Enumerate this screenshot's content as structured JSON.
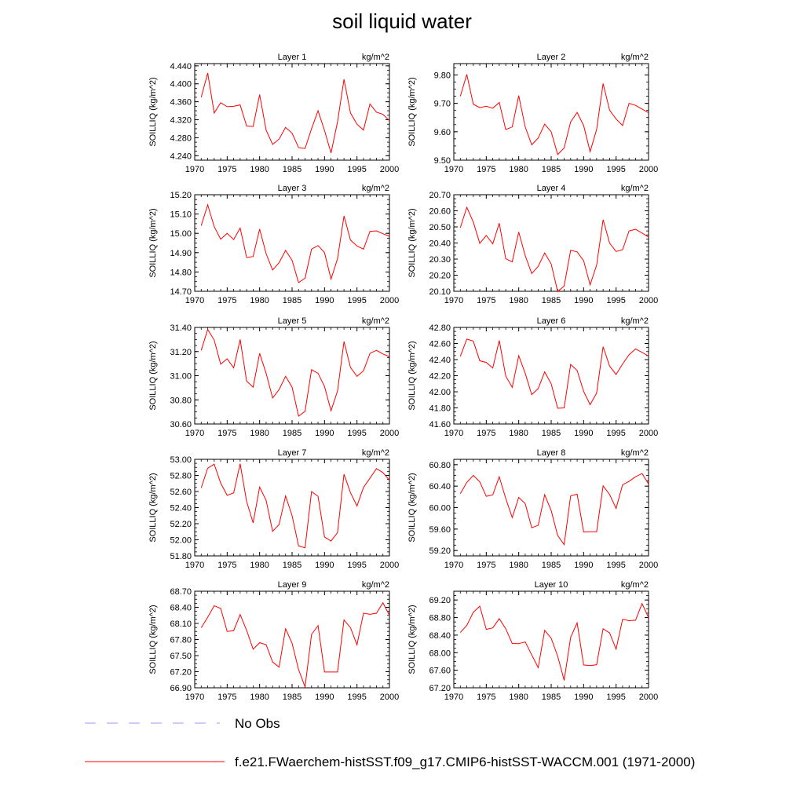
{
  "title": "soil liquid water",
  "legend": {
    "obs_label": "No Obs",
    "obs_color": "#9999ff",
    "model_label": "f.e21.FWaerchem-histSST.f09_g17.CMIP6-histSST-WACCM.001 (1971-2000)",
    "model_color": "#ff0000"
  },
  "chart_data": [
    {
      "type": "line",
      "title": "Layer 1",
      "units": "kg/m^2",
      "ylabel": "SOILLIQ  (kg/m^2)",
      "ylim": [
        4.23,
        4.445
      ],
      "yticks": [
        "4.240",
        "4.280",
        "4.320",
        "4.360",
        "4.400",
        "4.440"
      ],
      "xticks": [
        "1970",
        "1975",
        "1980",
        "1985",
        "1990",
        "1995",
        "2000"
      ],
      "xlim": [
        1970,
        2000
      ],
      "x": [
        1971,
        1972,
        1973,
        1974,
        1975,
        1976,
        1977,
        1978,
        1979,
        1980,
        1981,
        1982,
        1983,
        1984,
        1985,
        1986,
        1987,
        1988,
        1989,
        1990,
        1991,
        1992,
        1993,
        1994,
        1995,
        1996,
        1997,
        1998,
        1999,
        2000
      ],
      "series": [
        {
          "values": [
            4.37,
            4.424,
            4.335,
            4.358,
            4.349,
            4.35,
            4.353,
            4.306,
            4.305,
            4.376,
            4.297,
            4.265,
            4.277,
            4.303,
            4.29,
            4.258,
            4.256,
            4.3,
            4.34,
            4.296,
            4.246,
            4.315,
            4.41,
            4.335,
            4.31,
            4.297,
            4.355,
            4.337,
            4.332,
            4.318
          ]
        }
      ]
    },
    {
      "type": "line",
      "title": "Layer 2",
      "units": "kg/m^2",
      "ylabel": "SOILLIQ  (kg/m^2)",
      "ylim": [
        9.5,
        9.84
      ],
      "yticks": [
        "9.50",
        "9.60",
        "9.70",
        "9.80"
      ],
      "xticks": [
        "1970",
        "1975",
        "1980",
        "1985",
        "1990",
        "1995",
        "2000"
      ],
      "xlim": [
        1970,
        2000
      ],
      "x": [
        1971,
        1972,
        1973,
        1974,
        1975,
        1976,
        1977,
        1978,
        1979,
        1980,
        1981,
        1982,
        1983,
        1984,
        1985,
        1986,
        1987,
        1988,
        1989,
        1990,
        1991,
        1992,
        1993,
        1994,
        1995,
        1996,
        1997,
        1998,
        1999,
        2000
      ],
      "series": [
        {
          "values": [
            9.725,
            9.802,
            9.697,
            9.685,
            9.69,
            9.683,
            9.703,
            9.608,
            9.617,
            9.727,
            9.617,
            9.554,
            9.578,
            9.627,
            9.6,
            9.52,
            9.543,
            9.635,
            9.668,
            9.622,
            9.53,
            9.608,
            9.77,
            9.676,
            9.645,
            9.622,
            9.7,
            9.693,
            9.68,
            9.667
          ]
        }
      ]
    },
    {
      "type": "line",
      "title": "Layer 3",
      "units": "kg/m^2",
      "ylabel": "SOILLIQ  (kg/m^2)",
      "ylim": [
        14.7,
        15.2
      ],
      "yticks": [
        "14.70",
        "14.80",
        "14.90",
        "15.00",
        "15.10",
        "15.20"
      ],
      "xticks": [
        "1970",
        "1975",
        "1980",
        "1985",
        "1990",
        "1995",
        "2000"
      ],
      "xlim": [
        1970,
        2000
      ],
      "x": [
        1971,
        1972,
        1973,
        1974,
        1975,
        1976,
        1977,
        1978,
        1979,
        1980,
        1981,
        1982,
        1983,
        1984,
        1985,
        1986,
        1987,
        1988,
        1989,
        1990,
        1991,
        1992,
        1993,
        1994,
        1995,
        1996,
        1997,
        1998,
        1999,
        2000
      ],
      "series": [
        {
          "values": [
            15.04,
            15.148,
            15.035,
            14.97,
            15.0,
            14.968,
            15.027,
            14.875,
            14.88,
            15.022,
            14.895,
            14.81,
            14.848,
            14.912,
            14.86,
            14.745,
            14.768,
            14.918,
            14.937,
            14.9,
            14.763,
            14.868,
            15.09,
            14.965,
            14.935,
            14.918,
            15.01,
            15.013,
            14.998,
            14.985
          ]
        }
      ]
    },
    {
      "type": "line",
      "title": "Layer 4",
      "units": "kg/m^2",
      "ylabel": "SOILLIQ  (kg/m^2)",
      "ylim": [
        20.1,
        20.7
      ],
      "yticks": [
        "20.10",
        "20.20",
        "20.30",
        "20.40",
        "20.50",
        "20.60",
        "20.70"
      ],
      "xticks": [
        "1970",
        "1975",
        "1980",
        "1985",
        "1990",
        "1995",
        "2000"
      ],
      "xlim": [
        1970,
        2000
      ],
      "x": [
        1971,
        1972,
        1973,
        1974,
        1975,
        1976,
        1977,
        1978,
        1979,
        1980,
        1981,
        1982,
        1983,
        1984,
        1985,
        1986,
        1987,
        1988,
        1989,
        1990,
        1991,
        1992,
        1993,
        1994,
        1995,
        1996,
        1997,
        1998,
        1999,
        2000
      ],
      "series": [
        {
          "values": [
            20.495,
            20.622,
            20.53,
            20.398,
            20.447,
            20.395,
            20.523,
            20.302,
            20.283,
            20.468,
            20.322,
            20.21,
            20.255,
            20.338,
            20.27,
            20.098,
            20.133,
            20.355,
            20.345,
            20.29,
            20.14,
            20.262,
            20.545,
            20.4,
            20.347,
            20.358,
            20.475,
            20.485,
            20.462,
            20.437
          ]
        }
      ]
    },
    {
      "type": "line",
      "title": "Layer 5",
      "units": "kg/m^2",
      "ylabel": "SOILLIQ  (kg/m^2)",
      "ylim": [
        30.6,
        31.4
      ],
      "yticks": [
        "30.60",
        "30.80",
        "31.00",
        "31.20",
        "31.40"
      ],
      "xticks": [
        "1970",
        "1975",
        "1980",
        "1985",
        "1990",
        "1995",
        "2000"
      ],
      "xlim": [
        1970,
        2000
      ],
      "x": [
        1971,
        1972,
        1973,
        1974,
        1975,
        1976,
        1977,
        1978,
        1979,
        1980,
        1981,
        1982,
        1983,
        1984,
        1985,
        1986,
        1987,
        1988,
        1989,
        1990,
        1991,
        1992,
        1993,
        1994,
        1995,
        1996,
        1997,
        1998,
        1999,
        2000
      ],
      "series": [
        {
          "values": [
            31.21,
            31.383,
            31.295,
            31.095,
            31.14,
            31.065,
            31.3,
            30.955,
            30.905,
            31.185,
            31.02,
            30.815,
            30.885,
            30.995,
            30.905,
            30.665,
            30.705,
            31.05,
            31.02,
            30.91,
            30.71,
            30.873,
            31.283,
            31.068,
            30.995,
            31.04,
            31.185,
            31.21,
            31.18,
            31.157
          ]
        }
      ]
    },
    {
      "type": "line",
      "title": "Layer 6",
      "units": "kg/m^2",
      "ylabel": "SOILLIQ  (kg/m^2)",
      "ylim": [
        41.6,
        42.8
      ],
      "yticks": [
        "41.60",
        "41.80",
        "42.00",
        "42.20",
        "42.40",
        "42.60",
        "42.80"
      ],
      "xticks": [
        "1970",
        "1975",
        "1980",
        "1985",
        "1990",
        "1995",
        "2000"
      ],
      "xlim": [
        1970,
        2000
      ],
      "x": [
        1971,
        1972,
        1973,
        1974,
        1975,
        1976,
        1977,
        1978,
        1979,
        1980,
        1981,
        1982,
        1983,
        1984,
        1985,
        1986,
        1987,
        1988,
        1989,
        1990,
        1991,
        1992,
        1993,
        1994,
        1995,
        1996,
        1997,
        1998,
        1999,
        2000
      ],
      "series": [
        {
          "values": [
            42.44,
            42.655,
            42.63,
            42.385,
            42.365,
            42.295,
            42.638,
            42.195,
            42.055,
            42.448,
            42.23,
            41.965,
            42.04,
            42.248,
            42.1,
            41.795,
            41.8,
            42.34,
            42.265,
            42.005,
            41.84,
            41.985,
            42.56,
            42.32,
            42.215,
            42.345,
            42.46,
            42.533,
            42.49,
            42.445
          ]
        }
      ]
    },
    {
      "type": "line",
      "title": "Layer 7",
      "units": "kg/m^2",
      "ylabel": "SOILLIQ  (kg/m^2)",
      "ylim": [
        51.8,
        53.0
      ],
      "yticks": [
        "51.80",
        "52.00",
        "52.20",
        "52.40",
        "52.60",
        "52.80",
        "53.00"
      ],
      "xticks": [
        "1970",
        "1975",
        "1980",
        "1985",
        "1990",
        "1995",
        "2000"
      ],
      "xlim": [
        1970,
        2000
      ],
      "x": [
        1971,
        1972,
        1973,
        1974,
        1975,
        1976,
        1977,
        1978,
        1979,
        1980,
        1981,
        1982,
        1983,
        1984,
        1985,
        1986,
        1987,
        1988,
        1989,
        1990,
        1991,
        1992,
        1993,
        1994,
        1995,
        1996,
        1997,
        1998,
        1999,
        2000
      ],
      "series": [
        {
          "values": [
            52.645,
            52.89,
            52.94,
            52.705,
            52.553,
            52.583,
            52.945,
            52.475,
            52.21,
            52.655,
            52.49,
            52.105,
            52.19,
            52.545,
            52.3,
            51.925,
            51.9,
            52.6,
            52.54,
            52.035,
            51.985,
            52.09,
            52.815,
            52.585,
            52.42,
            52.65,
            52.765,
            52.885,
            52.835,
            52.74
          ]
        }
      ]
    },
    {
      "type": "line",
      "title": "Layer 8",
      "units": "kg/m^2",
      "ylabel": "SOILLIQ  (kg/m^2)",
      "ylim": [
        59.1,
        60.9
      ],
      "yticks": [
        "59.20",
        "59.60",
        "60.00",
        "60.40",
        "60.80"
      ],
      "xticks": [
        "1970",
        "1975",
        "1980",
        "1985",
        "1990",
        "1995",
        "2000"
      ],
      "xlim": [
        1970,
        2000
      ],
      "x": [
        1971,
        1972,
        1973,
        1974,
        1975,
        1976,
        1977,
        1978,
        1979,
        1980,
        1981,
        1982,
        1983,
        1984,
        1985,
        1986,
        1987,
        1988,
        1989,
        1990,
        1991,
        1992,
        1993,
        1994,
        1995,
        1996,
        1997,
        1998,
        1999,
        2000
      ],
      "series": [
        {
          "values": [
            60.26,
            60.47,
            60.6,
            60.48,
            60.21,
            60.238,
            60.575,
            60.17,
            59.815,
            60.19,
            60.075,
            59.625,
            59.67,
            60.24,
            59.945,
            59.48,
            59.31,
            60.22,
            60.25,
            59.545,
            59.55,
            59.55,
            60.405,
            60.245,
            59.985,
            60.425,
            60.49,
            60.575,
            60.635,
            60.44
          ]
        }
      ]
    },
    {
      "type": "line",
      "title": "Layer 9",
      "units": "kg/m^2",
      "ylabel": "SOILLIQ  (kg/m^2)",
      "ylim": [
        66.9,
        68.7
      ],
      "yticks": [
        "66.90",
        "67.20",
        "67.50",
        "67.80",
        "68.10",
        "68.40",
        "68.70"
      ],
      "xticks": [
        "1970",
        "1975",
        "1980",
        "1985",
        "1990",
        "1995",
        "2000"
      ],
      "xlim": [
        1970,
        2000
      ],
      "x": [
        1971,
        1972,
        1973,
        1974,
        1975,
        1976,
        1977,
        1978,
        1979,
        1980,
        1981,
        1982,
        1983,
        1984,
        1985,
        1986,
        1987,
        1988,
        1989,
        1990,
        1991,
        1992,
        1993,
        1994,
        1995,
        1996,
        1997,
        1998,
        1999,
        2000
      ],
      "series": [
        {
          "values": [
            68.02,
            68.215,
            68.43,
            68.38,
            67.95,
            67.965,
            68.265,
            67.97,
            67.62,
            67.74,
            67.705,
            67.38,
            67.285,
            68.0,
            67.73,
            67.24,
            66.915,
            67.895,
            68.06,
            67.195,
            67.195,
            67.195,
            68.165,
            68.02,
            67.7,
            68.29,
            68.27,
            68.29,
            68.485,
            68.25
          ]
        }
      ]
    },
    {
      "type": "line",
      "title": "Layer 10",
      "units": "kg/m^2",
      "ylabel": "SOILLIQ  (kg/m^2)",
      "ylim": [
        67.2,
        69.4
      ],
      "yticks": [
        "67.20",
        "67.60",
        "68.00",
        "68.40",
        "68.80",
        "69.20"
      ],
      "xticks": [
        "1970",
        "1975",
        "1980",
        "1985",
        "1990",
        "1995",
        "2000"
      ],
      "xlim": [
        1970,
        2000
      ],
      "x": [
        1971,
        1972,
        1973,
        1974,
        1975,
        1976,
        1977,
        1978,
        1979,
        1980,
        1981,
        1982,
        1983,
        1984,
        1985,
        1986,
        1987,
        1988,
        1989,
        1990,
        1991,
        1992,
        1993,
        1994,
        1995,
        1996,
        1997,
        1998,
        1999,
        2000
      ],
      "series": [
        {
          "values": [
            68.46,
            68.62,
            68.92,
            69.06,
            68.53,
            68.565,
            68.775,
            68.545,
            68.21,
            68.205,
            68.245,
            67.95,
            67.66,
            68.51,
            68.33,
            67.92,
            67.37,
            68.35,
            68.68,
            67.72,
            67.705,
            67.725,
            68.545,
            68.45,
            68.08,
            68.76,
            68.73,
            68.74,
            69.12,
            68.8
          ]
        }
      ]
    }
  ]
}
